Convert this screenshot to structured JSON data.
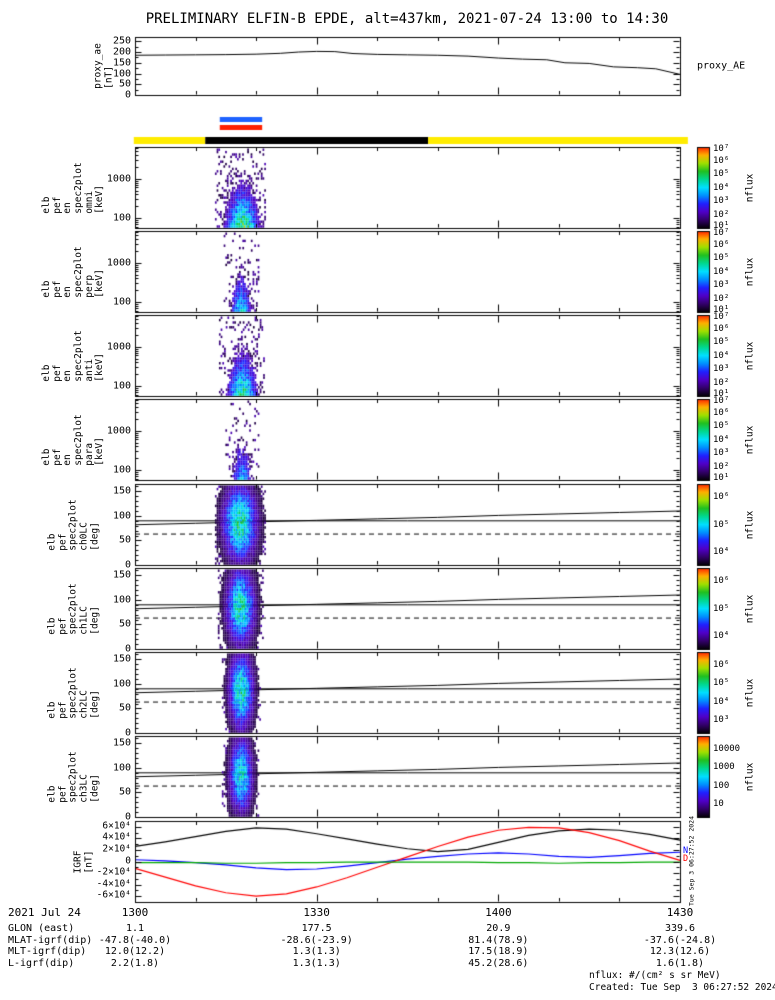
{
  "title": "PRELIMINARY ELFIN-B EPDE, alt=437km, 2021-07-24 13:00 to 14:30",
  "footer": {
    "units": "nflux: #/(cm² s sr MeV)",
    "created": "Created: Tue Sep  3 06:27:52 2024"
  },
  "side_timestamp": "Tue Sep 3 06:27:52 2024",
  "colors": {
    "background": "#ffffff",
    "axis": "#000000",
    "bar_blue": "#1e62ff",
    "bar_red": "#ff2000",
    "bar_yellow": "#ffec00",
    "bar_black": "#000000",
    "colormap": [
      "#050008",
      "#33006b",
      "#5000c8",
      "#2020ff",
      "#0090ff",
      "#00e0ff",
      "#00d890",
      "#20c020",
      "#a0e000",
      "#ffb000",
      "#ff2000"
    ]
  },
  "proxy_panel": {
    "ylabel": "proxy_ae\n[nT]",
    "right_label": "proxy_AE",
    "ytick_values": [
      250,
      200,
      150,
      100,
      50,
      0
    ]
  },
  "energy_panels": [
    {
      "label": "elb\npef\nen\nspec2plot\nomni\n[keV]",
      "yticks": [
        {
          "t": "1000",
          "v": 1000
        },
        {
          "t": "100",
          "v": 100
        }
      ],
      "cb_ticks": [
        "10⁷",
        "10⁶",
        "10⁵",
        "10⁴",
        "10³",
        "10²",
        "10¹"
      ],
      "cb_label": "nflux"
    },
    {
      "label": "elb\npef\nen\nspec2plot\nperp\n[keV]",
      "yticks": [
        {
          "t": "1000",
          "v": 1000
        },
        {
          "t": "100",
          "v": 100
        }
      ],
      "cb_ticks": [
        "10⁷",
        "10⁶",
        "10⁵",
        "10⁴",
        "10³",
        "10²",
        "10¹"
      ],
      "cb_label": "nflux"
    },
    {
      "label": "elb\npef\nen\nspec2plot\nanti\n[keV]",
      "yticks": [
        {
          "t": "1000",
          "v": 1000
        },
        {
          "t": "100",
          "v": 100
        }
      ],
      "cb_ticks": [
        "10⁷",
        "10⁶",
        "10⁵",
        "10⁴",
        "10³",
        "10²",
        "10¹"
      ],
      "cb_label": "nflux"
    },
    {
      "label": "elb\npef\nen\nspec2plot\npara\n[keV]",
      "yticks": [
        {
          "t": "1000",
          "v": 1000
        },
        {
          "t": "100",
          "v": 100
        }
      ],
      "cb_ticks": [
        "10⁷",
        "10⁶",
        "10⁵",
        "10⁴",
        "10³",
        "10²",
        "10¹"
      ],
      "cb_label": "nflux"
    }
  ],
  "pitch_panels": [
    {
      "label": "elb\npef\nspec2plot\nch0LC\n[deg]",
      "yticks": [
        150,
        100,
        50,
        0
      ],
      "cb_ticks": [
        "10⁶",
        "10⁵",
        "10⁴"
      ],
      "cb_label": "nflux"
    },
    {
      "label": "elb\npef\nspec2plot\nch1LC\n[deg]",
      "yticks": [
        150,
        100,
        50,
        0
      ],
      "cb_ticks": [
        "10⁶",
        "10⁵",
        "10⁴"
      ],
      "cb_label": "nflux"
    },
    {
      "label": "elb\npef\nspec2plot\nch2LC\n[deg]",
      "yticks": [
        150,
        100,
        50,
        0
      ],
      "cb_ticks": [
        "10⁶",
        "10⁵",
        "10⁴",
        "10³"
      ],
      "cb_label": "nflux"
    },
    {
      "label": "elb\npef\nspec2plot\nch3LC\n[deg]",
      "yticks": [
        150,
        100,
        50,
        0
      ],
      "cb_ticks": [
        "10000",
        "1000",
        "100",
        "10"
      ],
      "cb_label": "nflux"
    }
  ],
  "igrf_panel": {
    "label": "IGRF\n[nT]",
    "ytick_labels": [
      "6×10⁴",
      "4×10⁴",
      "2×10⁴",
      "0",
      "-2×10⁴",
      "-4×10⁴",
      "-6×10⁴"
    ],
    "ytick_values": [
      60000,
      40000,
      20000,
      0,
      -20000,
      -40000,
      -60000
    ],
    "right_labels": [
      {
        "text": "N",
        "color": "#0000ff",
        "y_value": 16000
      },
      {
        "text": "D",
        "color": "#ff0000",
        "y_value": 2000
      }
    ]
  },
  "xaxis": {
    "date_label": "2021 Jul 24",
    "tick_labels": [
      "1300",
      "1330",
      "1400",
      "1430"
    ],
    "tick_minutes": [
      0,
      30,
      60,
      90
    ]
  },
  "var_rows": [
    {
      "label": "GLON (east)",
      "values": [
        "1.1",
        "177.5",
        "20.9",
        "339.6"
      ]
    },
    {
      "label": "MLAT-igrf(dip)",
      "values": [
        "-47.8(-40.0)",
        "-28.6(-23.9)",
        "81.4(78.9)",
        "-37.6(-24.8)"
      ]
    },
    {
      "label": "MLT-igrf(dip)",
      "values": [
        "12.0(12.2)",
        "1.3(1.3)",
        "17.5(18.9)",
        "12.3(12.6)"
      ]
    },
    {
      "label": "L-igrf(dip)",
      "values": [
        "2.2(1.8)",
        "1.3(1.3)",
        "45.2(28.6)",
        "1.6(1.8)"
      ]
    }
  ],
  "status_bars": {
    "fast_bar_blue": {
      "t0": 14.0,
      "t1": 21.0
    },
    "fast_bar_red": {
      "t0": 14.0,
      "t1": 21.0
    },
    "mode_bar_segments": [
      {
        "t0": -0.2,
        "t1": 11.6,
        "color_key": "bar_yellow"
      },
      {
        "t0": 11.6,
        "t1": 48.4,
        "color_key": "bar_black"
      },
      {
        "t0": 48.4,
        "t1": 91.3,
        "color_key": "bar_yellow"
      }
    ]
  },
  "chart_data": [
    {
      "type": "line",
      "id": "proxy_AE",
      "ylabel": "proxy_ae [nT]",
      "ylim": [
        0,
        270
      ],
      "yticks": [
        0,
        50,
        100,
        150,
        200,
        250
      ],
      "x_minutes": [
        0,
        5,
        10,
        15,
        20,
        24,
        27,
        30,
        33,
        36,
        40,
        45,
        50,
        55,
        60,
        64,
        68,
        71,
        75,
        79,
        83,
        86,
        90
      ],
      "values": [
        185,
        186,
        187,
        188,
        190,
        194,
        200,
        203,
        202,
        193,
        189,
        187,
        185,
        181,
        172,
        167,
        164,
        150,
        147,
        131,
        127,
        122,
        96
      ]
    },
    {
      "type": "heatmap",
      "id": "elb_pef_en_spec2plot_omni",
      "yscale": "log",
      "ylim_keV": [
        55,
        6500
      ],
      "units": "nflux",
      "flux_range": [
        "10¹",
        "10⁷"
      ],
      "note": "electron energy-flux burst ≈13:13–13:21 UT, strongest below ~300 keV",
      "render": {
        "t0": 13.2,
        "t1": 21.4,
        "tc": 17.6,
        "ts": 2.6,
        "amp": 0.72,
        "cut": 0.17,
        "cap": 0.85,
        "sparse": 0.5,
        "seed": 11
      }
    },
    {
      "type": "heatmap",
      "id": "elb_pef_en_spec2plot_perp",
      "yscale": "log",
      "ylim_keV": [
        55,
        6500
      ],
      "units": "nflux",
      "flux_range": [
        "10¹",
        "10⁷"
      ],
      "note": "sparser burst ≈13:14–13:21 UT",
      "render": {
        "t0": 13.8,
        "t1": 20.9,
        "tc": 17.4,
        "ts": 1.7,
        "amp": 0.52,
        "cut": 0.2,
        "cap": 0.8,
        "sparse": 0.3,
        "seed": 22
      }
    },
    {
      "type": "heatmap",
      "id": "elb_pef_en_spec2plot_anti",
      "yscale": "log",
      "ylim_keV": [
        55,
        6500
      ],
      "units": "nflux",
      "flux_range": [
        "10¹",
        "10⁷"
      ],
      "note": "burst ≈13:13–13:21 UT, strongest below ~300 keV",
      "render": {
        "t0": 13.3,
        "t1": 21.3,
        "tc": 17.6,
        "ts": 2.3,
        "amp": 0.68,
        "cut": 0.18,
        "cap": 0.85,
        "sparse": 0.45,
        "seed": 33
      }
    },
    {
      "type": "heatmap",
      "id": "elb_pef_en_spec2plot_para",
      "yscale": "log",
      "ylim_keV": [
        55,
        6500
      ],
      "units": "nflux",
      "flux_range": [
        "10¹",
        "10⁷"
      ],
      "note": "sparser burst ≈13:14–13:21 UT",
      "render": {
        "t0": 13.8,
        "t1": 20.9,
        "tc": 17.5,
        "ts": 1.6,
        "amp": 0.48,
        "cut": 0.2,
        "cap": 0.78,
        "sparse": 0.28,
        "seed": 44
      }
    },
    {
      "type": "heatmap",
      "id": "elb_pef_spec2plot_ch0LC",
      "ylim_deg": [
        0,
        165
      ],
      "units": "nflux",
      "lines": {
        "solid_deg": 90,
        "dashed_deg": 63,
        "loss_cone": {
          "x": [
            0,
            10,
            20,
            30,
            40,
            50,
            60,
            70,
            80,
            90
          ],
          "deg": [
            82,
            85,
            88,
            91,
            94,
            97,
            101,
            104,
            107,
            110
          ]
        }
      },
      "render": {
        "t0": 13.2,
        "t1": 21.6,
        "tc": 17.2,
        "ts": 2.6,
        "amp": 0.6,
        "cut": 0.05,
        "cap": 0.72,
        "sparse": 0.55,
        "seed": 55
      }
    },
    {
      "type": "heatmap",
      "id": "elb_pef_spec2plot_ch1LC",
      "ylim_deg": [
        0,
        165
      ],
      "units": "nflux",
      "render": {
        "t0": 13.4,
        "t1": 21.4,
        "tc": 17.3,
        "ts": 2.2,
        "amp": 0.57,
        "cut": 0.05,
        "cap": 0.72,
        "sparse": 0.5,
        "seed": 66
      }
    },
    {
      "type": "heatmap",
      "id": "elb_pef_spec2plot_ch2LC",
      "ylim_deg": [
        0,
        165
      ],
      "units": "nflux",
      "render": {
        "t0": 13.5,
        "t1": 21.2,
        "tc": 17.4,
        "ts": 1.9,
        "amp": 0.56,
        "cut": 0.05,
        "cap": 0.72,
        "sparse": 0.45,
        "seed": 77
      }
    },
    {
      "type": "heatmap",
      "id": "elb_pef_spec2plot_ch3LC",
      "ylim_deg": [
        0,
        165
      ],
      "units": "nflux",
      "render": {
        "t0": 13.5,
        "t1": 21.2,
        "tc": 17.4,
        "ts": 1.8,
        "amp": 0.52,
        "cut": 0.05,
        "cap": 0.7,
        "sparse": 0.4,
        "seed": 88
      }
    },
    {
      "type": "line",
      "id": "IGRF",
      "ylabel": "IGRF [nT]",
      "ylim": [
        -70000,
        70000
      ],
      "x_minutes": [
        0,
        5,
        10,
        15,
        20,
        25,
        30,
        35,
        40,
        45,
        50,
        55,
        60,
        65,
        70,
        75,
        80,
        85,
        90
      ],
      "series": [
        {
          "name": "black",
          "color": "#000000",
          "values": [
            26000,
            34000,
            43000,
            52000,
            58000,
            56000,
            48000,
            39000,
            30000,
            22000,
            17000,
            21000,
            33000,
            45000,
            53000,
            56000,
            54000,
            47000,
            37000
          ]
        },
        {
          "name": "blue",
          "color": "#0000ff",
          "values": [
            3000,
            1000,
            -2000,
            -6000,
            -11000,
            -14000,
            -13000,
            -8000,
            -2000,
            4000,
            9000,
            13000,
            15000,
            13000,
            9000,
            7000,
            10000,
            14000,
            16000
          ]
        },
        {
          "name": "red",
          "color": "#ff0000",
          "values": [
            -12000,
            -27000,
            -42000,
            -54000,
            -60000,
            -56000,
            -44000,
            -28000,
            -10000,
            8000,
            26000,
            42000,
            54000,
            59000,
            58000,
            50000,
            36000,
            18000,
            2000
          ]
        },
        {
          "name": "green",
          "color": "#00a800",
          "values": [
            -2000,
            -2000,
            -2000,
            -3000,
            -3000,
            -2000,
            -2000,
            -1000,
            -1000,
            -1000,
            -1000,
            -1000,
            -2000,
            -2000,
            -3000,
            -2000,
            -2000,
            -1000,
            -1000
          ]
        }
      ]
    }
  ]
}
